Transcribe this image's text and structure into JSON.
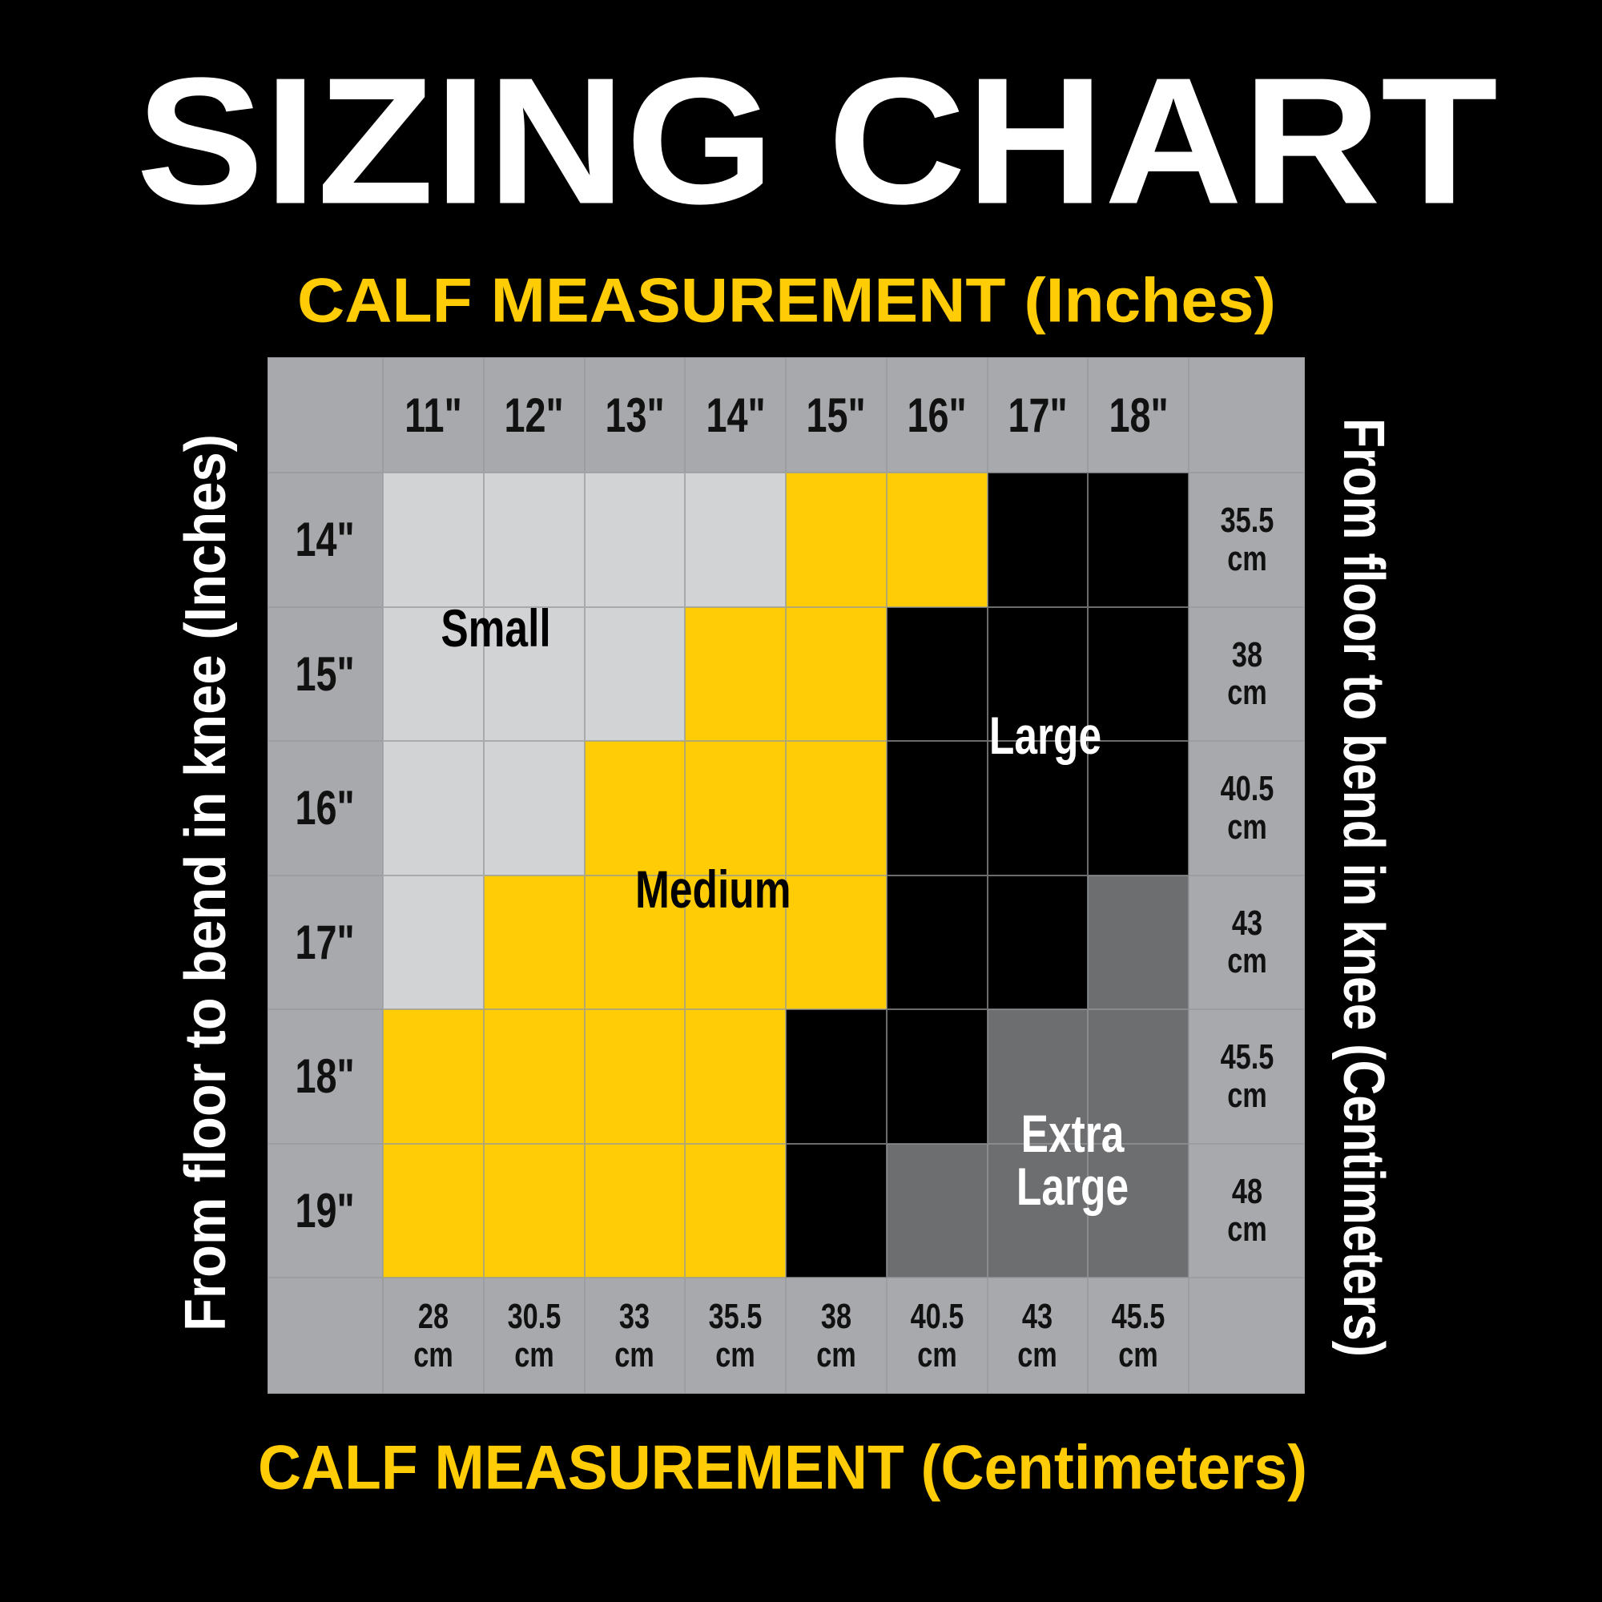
{
  "title": "SIZING CHART",
  "top_axis_title": "CALF MEASUREMENT (Inches)",
  "bottom_axis_title": "CALF MEASUREMENT (Centimeters)",
  "left_axis_title": "From floor to bend in knee (Inches)",
  "right_axis_title": "From floor to bend in knee (Centimeters)",
  "columns_in": [
    "11\"",
    "12\"",
    "13\"",
    "14\"",
    "15\"",
    "16\"",
    "17\"",
    "18\""
  ],
  "columns_cm": [
    "28 cm",
    "30.5 cm",
    "33 cm",
    "35.5 cm",
    "38 cm",
    "40.5 cm",
    "43 cm",
    "45.5 cm"
  ],
  "rows_in": [
    "14\"",
    "15\"",
    "16\"",
    "17\"",
    "18\"",
    "19\""
  ],
  "rows_cm": [
    "35.5 cm",
    "38 cm",
    "40.5 cm",
    "43 cm",
    "45.5 cm",
    "48 cm"
  ],
  "cells": [
    [
      "#d1d3d4",
      "#d1d3d4",
      "#d1d3d4",
      "#d1d3d4",
      "#ffcc05",
      "#ffcc05",
      "#000000",
      "#000000"
    ],
    [
      "#d1d3d4",
      "#d1d3d4",
      "#d1d3d4",
      "#ffcc05",
      "#ffcc05",
      "#000000",
      "#000000",
      "#000000"
    ],
    [
      "#d1d3d4",
      "#d1d3d4",
      "#ffcc05",
      "#ffcc05",
      "#ffcc05",
      "#000000",
      "#000000",
      "#000000"
    ],
    [
      "#d1d3d4",
      "#ffcc05",
      "#ffcc05",
      "#ffcc05",
      "#ffcc05",
      "#000000",
      "#000000",
      "#6d6e70"
    ],
    [
      "#ffcc05",
      "#ffcc05",
      "#ffcc05",
      "#ffcc05",
      "#000000",
      "#000000",
      "#6d6e70",
      "#6d6e70"
    ],
    [
      "#ffcc05",
      "#ffcc05",
      "#ffcc05",
      "#ffcc05",
      "#000000",
      "#6d6e70",
      "#6d6e70",
      "#6d6e70"
    ]
  ],
  "size_labels": [
    {
      "text": "Small",
      "color": "#000000"
    },
    {
      "text": "Medium",
      "color": "#000000"
    },
    {
      "text": "Large",
      "color": "#ffffff"
    },
    {
      "text": "Extra Large",
      "color": "#ffffff"
    }
  ]
}
